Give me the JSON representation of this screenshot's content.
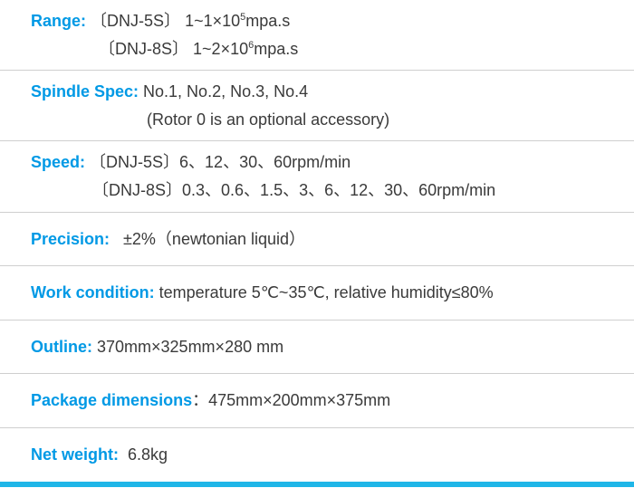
{
  "colors": {
    "label": "#0099e5",
    "value": "#3a3a3a",
    "divider": "#cfcfcf",
    "bottom_bar": "#1fb6e8",
    "background": "#ffffff"
  },
  "rows": {
    "range": {
      "label": "Range:",
      "line1_model": "〔DNJ-5S〕",
      "line1_val_pre": "1~1×10",
      "line1_exp": "5",
      "line1_unit": "mpa.s",
      "line2_model": "〔DNJ-8S〕",
      "line2_val_pre": "1~2×10",
      "line2_exp": "6",
      "line2_unit": "mpa.s"
    },
    "spindle": {
      "label": "Spindle Spec:",
      "line1": " No.1, No.2, No.3, No.4",
      "line2": "(Rotor 0 is an optional accessory)"
    },
    "speed": {
      "label": "Speed:",
      "line1": "〔DNJ-5S〕6、12、30、60rpm/min",
      "line2": "〔DNJ-8S〕0.3、0.6、1.5、3、6、12、30、60rpm/min"
    },
    "precision": {
      "label": "Precision:",
      "value": "   ±2%（newtonian liquid）"
    },
    "work": {
      "label": "Work condition:",
      "value": " temperature 5℃~35℃, relative humidity≤80%"
    },
    "outline": {
      "label": "Outline:",
      "value": " 370mm×325mm×280 mm"
    },
    "package": {
      "label": "Package dimensions",
      "sep": "：",
      "value": "475mm×200mm×375mm"
    },
    "netweight": {
      "label": "Net weight:",
      "value": "  6.8kg"
    }
  }
}
